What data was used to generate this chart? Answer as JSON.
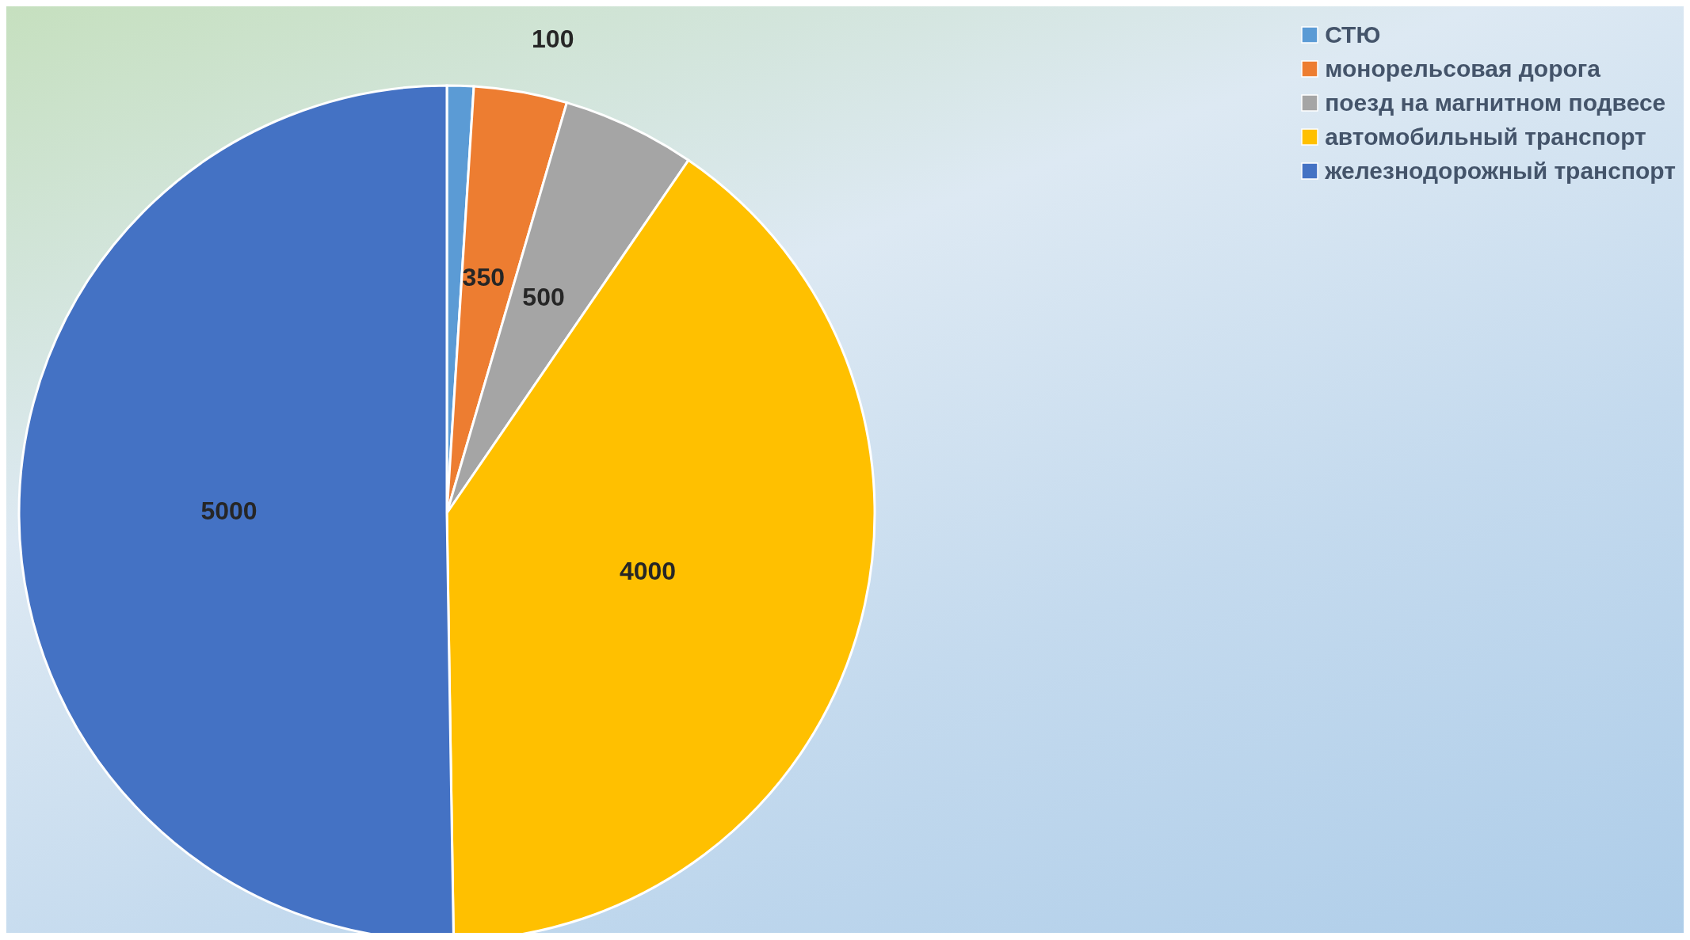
{
  "chart_data": {
    "type": "pie",
    "categories": [
      "СТЮ",
      "монорельсовая дорога",
      "поезд на магнитном подвесе",
      "автомобильный транспорт",
      "железнодорожный транспорт"
    ],
    "values": [
      100,
      350,
      500,
      4000,
      5000
    ],
    "colors": [
      "#5b9bd5",
      "#ed7d31",
      "#a5a5a5",
      "#ffc000",
      "#4472c4"
    ],
    "data_labels": true,
    "legend": "top right"
  }
}
